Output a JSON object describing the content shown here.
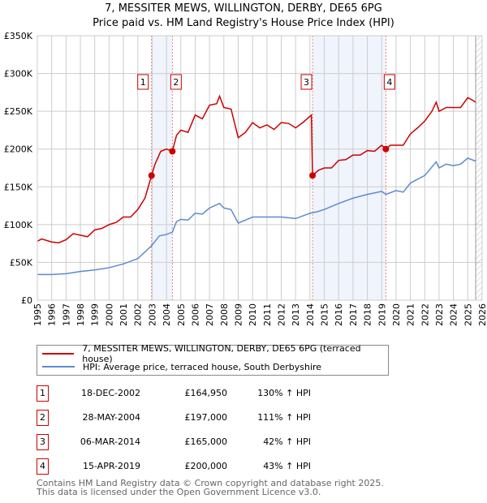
{
  "chart_data": {
    "type": "line",
    "title": "7, MESSITER MEWS, WILLINGTON, DERBY, DE65 6PG",
    "subtitle": "Price paid vs. HM Land Registry's House Price Index (HPI)",
    "xlim": [
      1995,
      2026
    ],
    "ylim": [
      0,
      350000
    ],
    "y_ticks": [
      "£0",
      "£50K",
      "£100K",
      "£150K",
      "£200K",
      "£250K",
      "£300K",
      "£350K"
    ],
    "x_ticks": [
      "1995",
      "1996",
      "1997",
      "1998",
      "1999",
      "2000",
      "2001",
      "2002",
      "2003",
      "2004",
      "2005",
      "2006",
      "2007",
      "2008",
      "2009",
      "2010",
      "2011",
      "2012",
      "2013",
      "2014",
      "2015",
      "2016",
      "2017",
      "2018",
      "2019",
      "2020",
      "2021",
      "2022",
      "2023",
      "2024",
      "2025",
      "2026"
    ],
    "series": [
      {
        "name": "7, MESSITER MEWS, WILLINGTON, DERBY, DE65 6PG (terraced house)",
        "color": "#cc0000",
        "x": [
          1995,
          1995.3,
          1996,
          1996.5,
          1997,
          1997.5,
          1998,
          1998.5,
          1999,
          1999.5,
          2000,
          2000.5,
          2001,
          2001.5,
          2002,
          2002.5,
          2002.96,
          2003.2,
          2003.6,
          2004,
          2004.41,
          2004.7,
          2005,
          2005.5,
          2006,
          2006.5,
          2007,
          2007.5,
          2007.7,
          2008,
          2008.5,
          2009,
          2009.5,
          2010,
          2010.5,
          2011,
          2011.5,
          2012,
          2012.5,
          2013,
          2013.5,
          2014.1,
          2014.18,
          2014.6,
          2015,
          2015.5,
          2016,
          2016.5,
          2017,
          2017.5,
          2018,
          2018.5,
          2019,
          2019.29,
          2019.6,
          2020,
          2020.5,
          2021,
          2021.5,
          2022,
          2022.5,
          2022.8,
          2023,
          2023.5,
          2024,
          2024.5,
          2025,
          2025.3,
          2025.55
        ],
        "y": [
          78000,
          81000,
          77000,
          76000,
          80000,
          88000,
          86000,
          84000,
          93000,
          95000,
          100000,
          103000,
          110000,
          110000,
          120000,
          135000,
          164950,
          180000,
          197000,
          200000,
          197000,
          218000,
          225000,
          222000,
          245000,
          240000,
          258000,
          260000,
          270000,
          255000,
          253000,
          215000,
          222000,
          235000,
          228000,
          232000,
          226000,
          235000,
          234000,
          228000,
          235000,
          245000,
          165000,
          172000,
          175000,
          175000,
          185000,
          186000,
          192000,
          192000,
          198000,
          197000,
          205000,
          200000,
          205000,
          205000,
          205000,
          220000,
          228000,
          237000,
          250000,
          262000,
          250000,
          255000,
          255000,
          255000,
          268000,
          265000,
          262000
        ]
      },
      {
        "name": "HPI: Average price, terraced house, South Derbyshire",
        "color": "#5b8bd0",
        "x": [
          1995,
          1996,
          1997,
          1998,
          1999,
          2000,
          2001,
          2002,
          2002.96,
          2003.5,
          2004,
          2004.41,
          2004.7,
          2005,
          2005.5,
          2006,
          2006.5,
          2007,
          2007.7,
          2008,
          2008.5,
          2009,
          2009.5,
          2010,
          2011,
          2012,
          2013,
          2014,
          2014.5,
          2015,
          2016,
          2017,
          2018,
          2019,
          2019.29,
          2020,
          2020.5,
          2021,
          2022,
          2022.8,
          2023,
          2023.5,
          2024,
          2024.5,
          2025,
          2025.55
        ],
        "y": [
          34000,
          34000,
          35000,
          38000,
          40000,
          43000,
          48000,
          55000,
          72000,
          85000,
          87000,
          90000,
          104000,
          107000,
          106000,
          115000,
          114000,
          122000,
          128000,
          122000,
          120000,
          102000,
          106000,
          110000,
          110000,
          110000,
          108000,
          115000,
          117000,
          120000,
          128000,
          135000,
          140000,
          144000,
          140000,
          145000,
          143000,
          155000,
          165000,
          183000,
          175000,
          180000,
          178000,
          180000,
          188000,
          184000
        ]
      }
    ],
    "sales": [
      {
        "label": "1",
        "date": "18-DEC-2002",
        "price": "£164,950",
        "hpi": "130% ↑ HPI",
        "x": 2002.96,
        "y": 164950
      },
      {
        "label": "2",
        "date": "28-MAY-2004",
        "price": "£197,000",
        "hpi": "111% ↑ HPI",
        "x": 2004.41,
        "y": 197000
      },
      {
        "label": "3",
        "date": "06-MAR-2014",
        "price": "£165,000",
        "hpi": "42% ↑ HPI",
        "x": 2014.18,
        "y": 165000
      },
      {
        "label": "4",
        "date": "15-APR-2019",
        "price": "£200,000",
        "hpi": "43% ↑ HPI",
        "x": 2019.29,
        "y": 200000
      }
    ],
    "shaded": [
      [
        2002.96,
        2004.41
      ],
      [
        2014.18,
        2019.29
      ]
    ],
    "forecast_start": 2025.55
  },
  "legend": {
    "property": "7, MESSITER MEWS, WILLINGTON, DERBY, DE65 6PG (terraced house)",
    "hpi": "HPI: Average price, terraced house, South Derbyshire"
  },
  "footer": {
    "line1": "Contains HM Land Registry data © Crown copyright and database right 2025.",
    "line2": "This data is licensed under the Open Government Licence v3.0."
  }
}
